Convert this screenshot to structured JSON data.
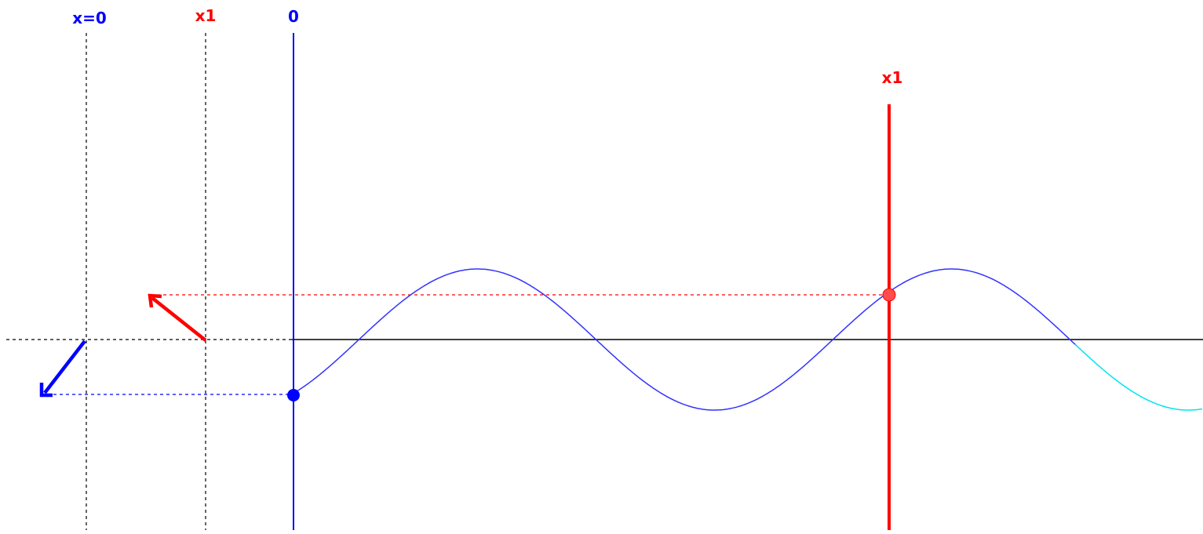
{
  "labels": {
    "phasor_axis_origin": "x=0",
    "phasor_axis_x1": "x1",
    "wave_origin": "0",
    "wave_marker_x1": "x1"
  },
  "colors": {
    "background": "#ffffff",
    "origin_blue": "#0000ff",
    "x1_red": "#ff0000",
    "red_dot": "#ff4d4d",
    "wave_blue": "#3333ff",
    "wave_cyan": "#00e5ee",
    "axis_black": "#000000"
  },
  "wave": {
    "shape": "sine",
    "value_at_origin": -0.77,
    "value_at_x1": 0.62,
    "colors": [
      "blue",
      "cyan"
    ]
  }
}
